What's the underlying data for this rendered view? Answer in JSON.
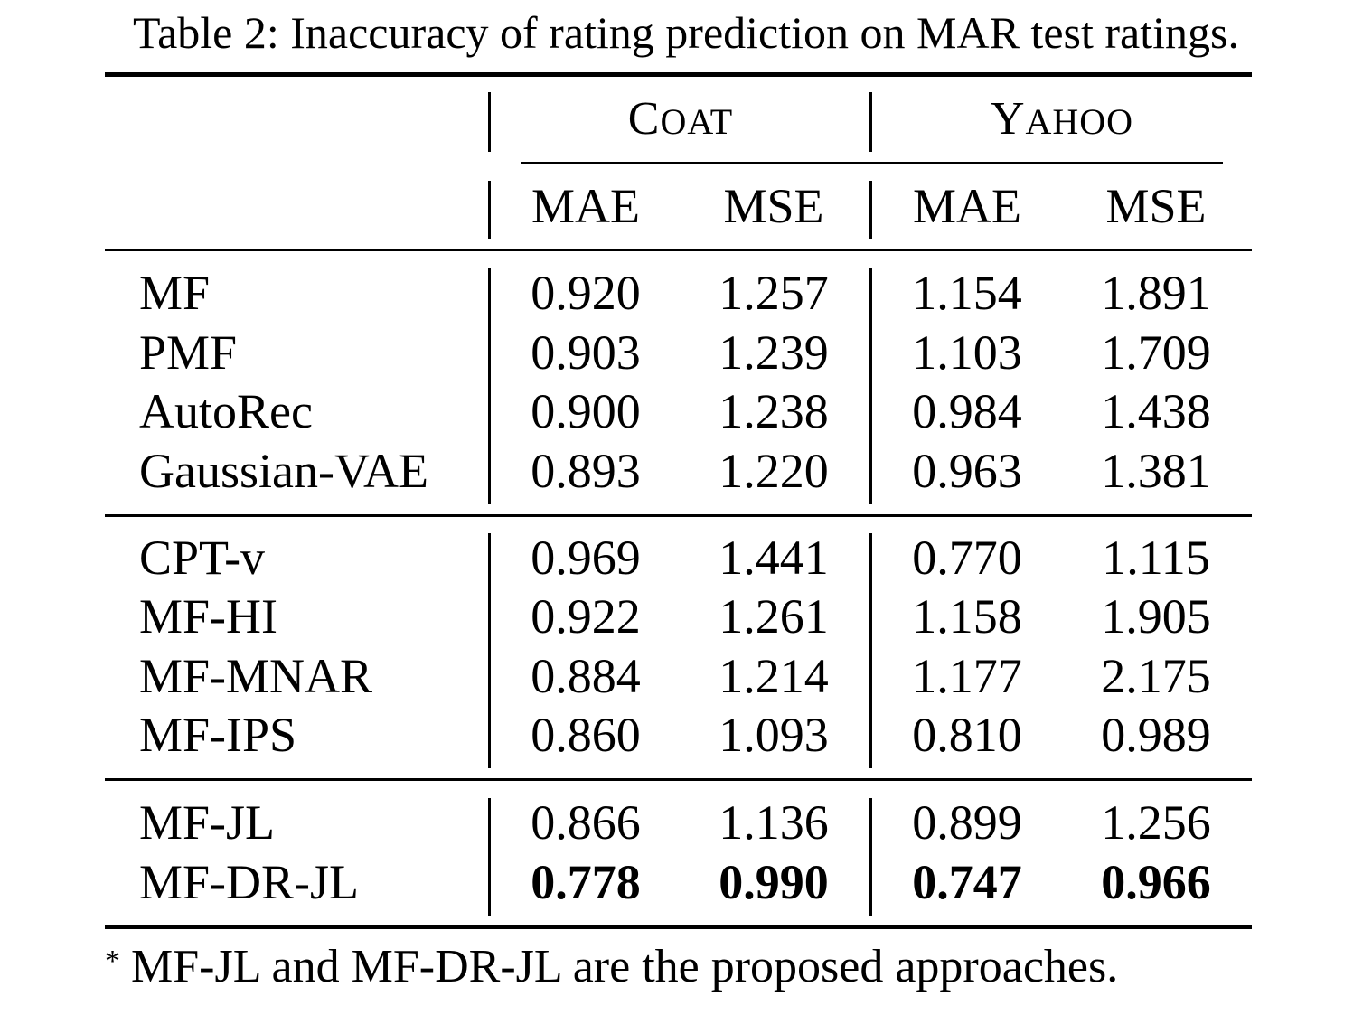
{
  "caption": "Table 2: Inaccuracy of rating prediction on MAR test ratings.",
  "groups": [
    {
      "first": "C",
      "rest": "OAT"
    },
    {
      "first": "Y",
      "rest": "AHOO"
    }
  ],
  "metrics": [
    "MAE",
    "MSE",
    "MAE",
    "MSE"
  ],
  "rows": [
    {
      "name": "MF",
      "values": [
        "0.920",
        "1.257",
        "1.154",
        "1.891"
      ]
    },
    {
      "name": "PMF",
      "values": [
        "0.903",
        "1.239",
        "1.103",
        "1.709"
      ]
    },
    {
      "name": "AutoRec",
      "values": [
        "0.900",
        "1.238",
        "0.984",
        "1.438"
      ]
    },
    {
      "name": "Gaussian-VAE",
      "values": [
        "0.893",
        "1.220",
        "0.963",
        "1.381"
      ]
    },
    {
      "name": "CPT-v",
      "values": [
        "0.969",
        "1.441",
        "0.770",
        "1.115"
      ]
    },
    {
      "name": "MF-HI",
      "values": [
        "0.922",
        "1.261",
        "1.158",
        "1.905"
      ]
    },
    {
      "name": "MF-MNAR",
      "values": [
        "0.884",
        "1.214",
        "1.177",
        "2.175"
      ]
    },
    {
      "name": "MF-IPS",
      "values": [
        "0.860",
        "1.093",
        "0.810",
        "0.989"
      ]
    },
    {
      "name": "MF-JL",
      "values": [
        "0.866",
        "1.136",
        "0.899",
        "1.256"
      ]
    },
    {
      "name": "MF-DR-JL",
      "values": [
        "0.778",
        "0.990",
        "0.747",
        "0.966"
      ],
      "bold": true
    }
  ],
  "footnote": {
    "marker": "*",
    "text": "MF-JL and MF-DR-JL are the proposed approaches."
  }
}
